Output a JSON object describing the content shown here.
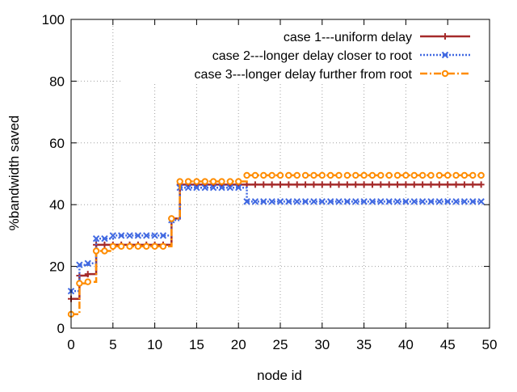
{
  "chart_data": {
    "type": "line",
    "title": "",
    "xlabel": "node id",
    "ylabel": "%bandwidth saved",
    "xlim": [
      0,
      50
    ],
    "ylim": [
      0,
      100
    ],
    "xticks": [
      0,
      5,
      10,
      15,
      20,
      25,
      30,
      35,
      40,
      45,
      50
    ],
    "yticks": [
      0,
      20,
      40,
      60,
      80,
      100
    ],
    "grid": true,
    "legend_position": "top-right",
    "series": [
      {
        "name": "case 1---uniform delay",
        "color": "#a52a2a",
        "line_style": "solid",
        "marker": "plus",
        "x": [
          0,
          1,
          2,
          3,
          4,
          5,
          6,
          7,
          8,
          9,
          10,
          11,
          12,
          13,
          14,
          15,
          16,
          17,
          18,
          19,
          20,
          21,
          22,
          23,
          24,
          25,
          26,
          27,
          28,
          29,
          30,
          31,
          32,
          33,
          34,
          35,
          36,
          37,
          38,
          39,
          40,
          41,
          42,
          43,
          44,
          45,
          46,
          47,
          48,
          49
        ],
        "y": [
          9.5,
          17,
          17.5,
          27,
          27,
          27,
          27,
          27,
          27,
          27,
          27,
          27,
          35.5,
          46.5,
          46.5,
          46.5,
          46.5,
          46.5,
          46.5,
          46.5,
          46.5,
          46.5,
          46.5,
          46.5,
          46.5,
          46.5,
          46.5,
          46.5,
          46.5,
          46.5,
          46.5,
          46.5,
          46.5,
          46.5,
          46.5,
          46.5,
          46.5,
          46.5,
          46.5,
          46.5,
          46.5,
          46.5,
          46.5,
          46.5,
          46.5,
          46.5,
          46.5,
          46.5,
          46.5,
          46.5
        ]
      },
      {
        "name": "case 2---longer delay closer to root",
        "color": "#4169e1",
        "line_style": "dotted",
        "marker": "x",
        "x": [
          0,
          1,
          2,
          3,
          4,
          5,
          6,
          7,
          8,
          9,
          10,
          11,
          12,
          13,
          14,
          15,
          16,
          17,
          18,
          19,
          20,
          21,
          22,
          23,
          24,
          25,
          26,
          27,
          28,
          29,
          30,
          31,
          32,
          33,
          34,
          35,
          36,
          37,
          38,
          39,
          40,
          41,
          42,
          43,
          44,
          45,
          46,
          47,
          48,
          49
        ],
        "y": [
          12,
          20.5,
          21,
          29,
          29,
          30,
          30,
          30,
          30,
          30,
          30,
          30,
          35,
          45.5,
          45.5,
          45.5,
          45.5,
          45.5,
          45.5,
          45.5,
          45.5,
          41,
          41,
          41,
          41,
          41,
          41,
          41,
          41,
          41,
          41,
          41,
          41,
          41,
          41,
          41,
          41,
          41,
          41,
          41,
          41,
          41,
          41,
          41,
          41,
          41,
          41,
          41,
          41,
          41
        ]
      },
      {
        "name": "case 3---longer delay further from root",
        "color": "#ff8c00",
        "line_style": "dash-dot",
        "marker": "circle",
        "x": [
          0,
          1,
          2,
          3,
          4,
          5,
          6,
          7,
          8,
          9,
          10,
          11,
          12,
          13,
          14,
          15,
          16,
          17,
          18,
          19,
          20,
          21,
          22,
          23,
          24,
          25,
          26,
          27,
          28,
          29,
          30,
          31,
          32,
          33,
          34,
          35,
          36,
          37,
          38,
          39,
          40,
          41,
          42,
          43,
          44,
          45,
          46,
          47,
          48,
          49
        ],
        "y": [
          4.5,
          14.5,
          15,
          25,
          25,
          26.5,
          26.5,
          26.5,
          26.5,
          26.5,
          26.5,
          26.5,
          35.5,
          47.5,
          47.5,
          47.5,
          47.5,
          47.5,
          47.5,
          47.5,
          47.5,
          49.5,
          49.5,
          49.5,
          49.5,
          49.5,
          49.5,
          49.5,
          49.5,
          49.5,
          49.5,
          49.5,
          49.5,
          49.5,
          49.5,
          49.5,
          49.5,
          49.5,
          49.5,
          49.5,
          49.5,
          49.5,
          49.5,
          49.5,
          49.5,
          49.5,
          49.5,
          49.5,
          49.5,
          49.5
        ]
      }
    ]
  }
}
